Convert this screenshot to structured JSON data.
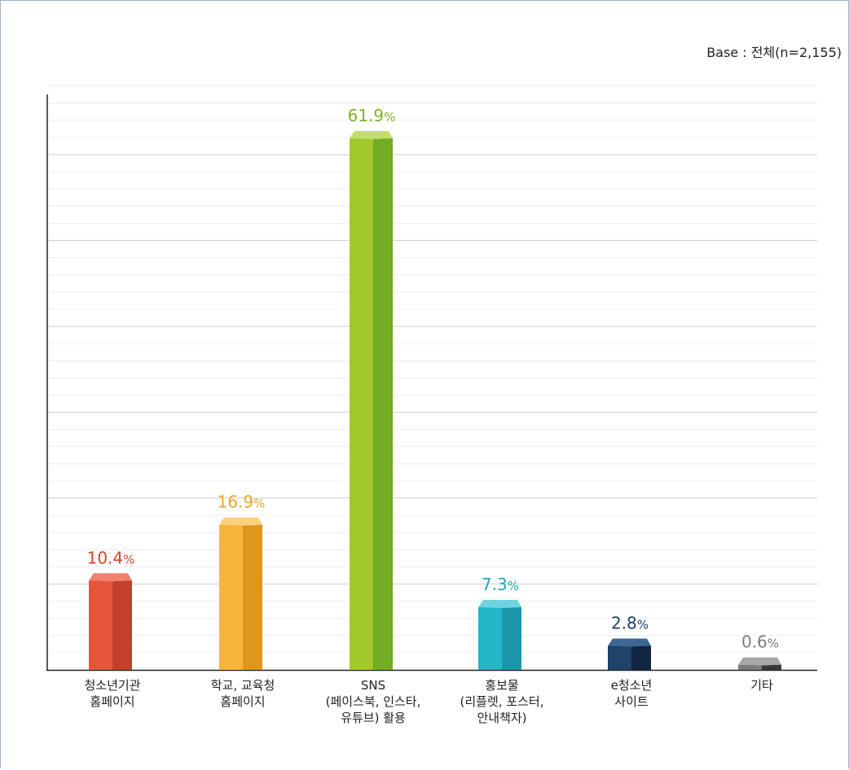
{
  "base_note": "Base : 전체(n=2,155)",
  "chart_data": {
    "type": "bar",
    "title": "",
    "xlabel": "",
    "ylabel": "",
    "ylim": [
      0,
      68
    ],
    "grid": true,
    "categories": [
      [
        "청소년기관",
        "홈페이지"
      ],
      [
        "학교, 교육청",
        "홈페이지"
      ],
      [
        "SNS",
        "(페이스북, 인스타,",
        "유튜브) 활용"
      ],
      [
        "홍보물",
        "(리플렛, 포스터,",
        "안내책자)"
      ],
      [
        "e청소년",
        "사이트"
      ],
      [
        "기타"
      ]
    ],
    "values": [
      10.4,
      16.9,
      61.9,
      7.3,
      2.8,
      0.6
    ],
    "value_labels": [
      "10.4",
      "16.9",
      "61.9",
      "7.3",
      "2.8",
      "0.6"
    ],
    "value_unit": "%",
    "colors": {
      "front": [
        "#e4553c",
        "#f5b53b",
        "#a1c82c",
        "#22b6c6",
        "#1f426b",
        "#7d7b78"
      ],
      "side": [
        "#c2412b",
        "#df961c",
        "#73ad26",
        "#1a96a8",
        "#112742",
        "#3b3936"
      ],
      "top": [
        "#ef826c",
        "#fad17e",
        "#c4de6b",
        "#6ed4df",
        "#3d6896",
        "#a9a7a4"
      ],
      "label": [
        "#d8452b",
        "#eba62a",
        "#7fb02b",
        "#1fa8b5",
        "#1f3f66",
        "#7b7b7b"
      ]
    }
  }
}
